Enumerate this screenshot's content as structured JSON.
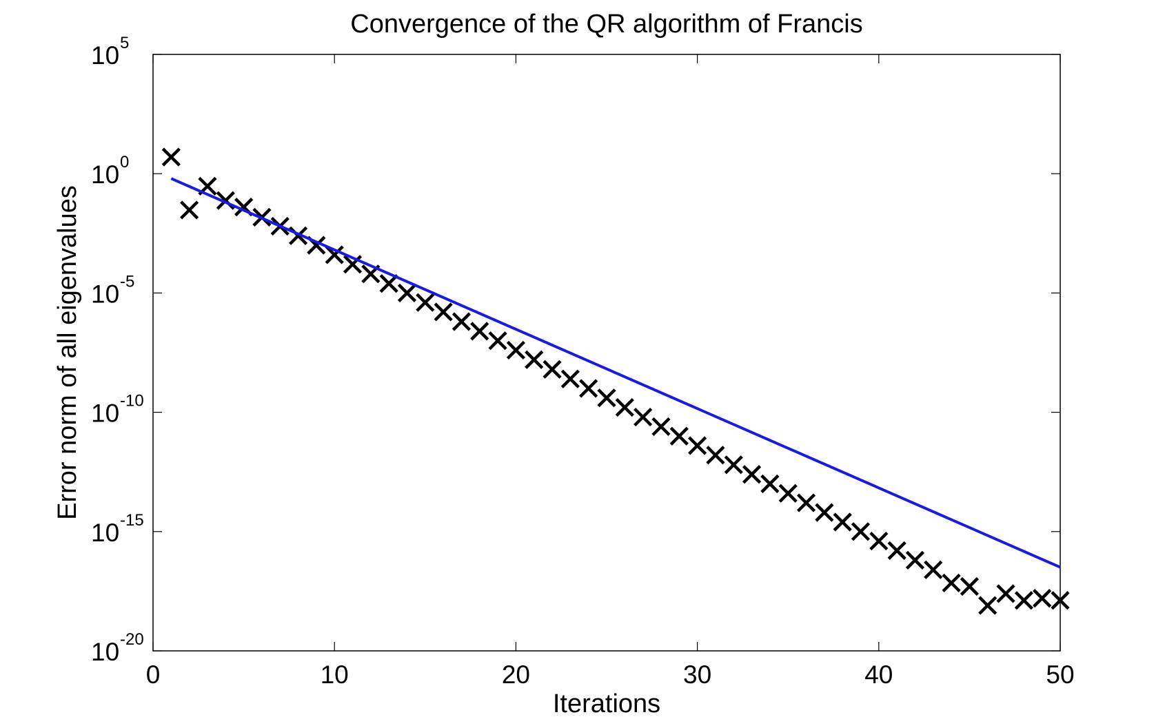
{
  "chart_data": {
    "type": "scatter",
    "title": "Convergence of the QR algorithm of Francis",
    "xlabel": "Iterations",
    "ylabel": "Error norm of all eigenvalues",
    "xlim": [
      0,
      50
    ],
    "ylim": [
      1e-20,
      100000.0
    ],
    "y_scale": "log",
    "x_ticks": [
      0,
      10,
      20,
      30,
      40,
      50
    ],
    "x_tick_labels": [
      "0",
      "10",
      "20",
      "30",
      "40",
      "50"
    ],
    "y_ticks": [
      {
        "value": 100000.0,
        "base": "10",
        "exponent": "5"
      },
      {
        "value": 1.0,
        "base": "10",
        "exponent": "0"
      },
      {
        "value": 1e-05,
        "base": "10",
        "exponent": "-5"
      },
      {
        "value": 1e-10,
        "base": "10",
        "exponent": "-10"
      },
      {
        "value": 1e-15,
        "base": "10",
        "exponent": "-15"
      },
      {
        "value": 1e-20,
        "base": "10",
        "exponent": "-20"
      }
    ],
    "grid": false,
    "legend": "none",
    "series": [
      {
        "marker": "x",
        "color": "#000000",
        "x": [
          1,
          2,
          3,
          4,
          5,
          6,
          7,
          8,
          9,
          10,
          11,
          12,
          13,
          14,
          15,
          16,
          17,
          18,
          19,
          20,
          21,
          22,
          23,
          24,
          25,
          26,
          27,
          28,
          29,
          30,
          31,
          32,
          33,
          34,
          35,
          36,
          37,
          38,
          39,
          40,
          41,
          42,
          43,
          44,
          45,
          46,
          47,
          48,
          49,
          50
        ],
        "y": [
          5.0,
          0.03,
          0.3,
          0.075,
          0.04,
          0.015,
          0.0063,
          0.0025,
          0.001,
          0.0004,
          0.00016,
          6.3e-05,
          2.5e-05,
          1e-05,
          4e-06,
          1.6e-06,
          6.3e-07,
          2.5e-07,
          1e-07,
          4e-08,
          1.6e-08,
          6.3e-09,
          2.5e-09,
          1e-09,
          4e-10,
          1.6e-10,
          6.3e-11,
          2.5e-11,
          1e-11,
          4e-12,
          1.6e-12,
          6.3e-13,
          2.5e-13,
          1e-13,
          4e-14,
          1.6e-14,
          6.3e-15,
          2.5e-15,
          1e-15,
          4e-16,
          1.6e-16,
          6.3e-17,
          2.5e-17,
          7e-18,
          5e-18,
          8e-19,
          2.5e-18,
          1.3e-18,
          1.6e-18,
          1.3e-18
        ]
      },
      {
        "marker": "line",
        "color": "#1a1ae6",
        "x": [
          1,
          50
        ],
        "y": [
          0.63,
          3.2e-17
        ]
      }
    ]
  }
}
